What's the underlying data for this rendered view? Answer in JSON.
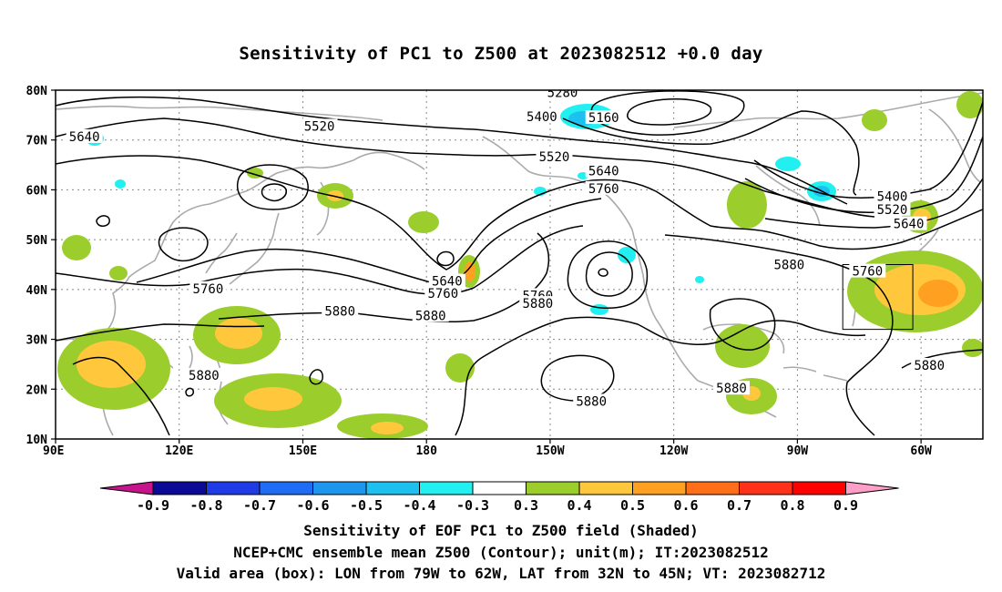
{
  "title": "Sensitivity of PC1 to Z500 at 2023082512 +0.0 day",
  "captions": {
    "line1": "Sensitivity of EOF PC1 to Z500 field (Shaded)",
    "line2": "NCEP+CMC ensemble mean Z500 (Contour); unit(m); IT:2023082512",
    "line3": "Valid area (box): LON from 79W to 62W, LAT from 32N to 45N; VT: 2023082712"
  },
  "map": {
    "lon_range": [
      90,
      315
    ],
    "lat_range": [
      10,
      80
    ],
    "lon_ticks": [
      {
        "lon": 90,
        "label": "90E"
      },
      {
        "lon": 120,
        "label": "120E"
      },
      {
        "lon": 150,
        "label": "150E"
      },
      {
        "lon": 180,
        "label": "180"
      },
      {
        "lon": 210,
        "label": "150W"
      },
      {
        "lon": 240,
        "label": "120W"
      },
      {
        "lon": 270,
        "label": "90W"
      },
      {
        "lon": 300,
        "label": "60W"
      }
    ],
    "lat_ticks": [
      {
        "lat": 10,
        "label": "10N"
      },
      {
        "lat": 20,
        "label": "20N"
      },
      {
        "lat": 30,
        "label": "30N"
      },
      {
        "lat": 40,
        "label": "40N"
      },
      {
        "lat": 50,
        "label": "50N"
      },
      {
        "lat": 60,
        "label": "60N"
      },
      {
        "lat": 70,
        "label": "70N"
      },
      {
        "lat": 80,
        "label": "80N"
      }
    ],
    "valid_box": {
      "lon_min": 281,
      "lon_max": 298,
      "lat_min": 32,
      "lat_max": 45
    },
    "contour_labels": [
      {
        "text": "5280",
        "lon": 213,
        "lat": 79.5
      },
      {
        "text": "5160",
        "lon": 223,
        "lat": 74.5
      },
      {
        "text": "5400",
        "lon": 208,
        "lat": 74.7
      },
      {
        "text": "5520",
        "lon": 154,
        "lat": 72.8
      },
      {
        "text": "5520",
        "lon": 211,
        "lat": 66.7
      },
      {
        "text": "5640",
        "lon": 97,
        "lat": 70.7
      },
      {
        "text": "5640",
        "lon": 223,
        "lat": 63.8
      },
      {
        "text": "5760",
        "lon": 223,
        "lat": 60.3
      },
      {
        "text": "5400",
        "lon": 293,
        "lat": 58.7
      },
      {
        "text": "5520",
        "lon": 293,
        "lat": 56.1
      },
      {
        "text": "5640",
        "lon": 297,
        "lat": 53.2
      },
      {
        "text": "5640",
        "lon": 185,
        "lat": 41.7
      },
      {
        "text": "5760",
        "lon": 184,
        "lat": 39.2
      },
      {
        "text": "5760",
        "lon": 127,
        "lat": 40.2
      },
      {
        "text": "5760",
        "lon": 207,
        "lat": 38.8
      },
      {
        "text": "5760",
        "lon": 287,
        "lat": 43.7
      },
      {
        "text": "5880",
        "lon": 268,
        "lat": 45.0
      },
      {
        "text": "5880",
        "lon": 159,
        "lat": 35.7
      },
      {
        "text": "5880",
        "lon": 181,
        "lat": 34.8
      },
      {
        "text": "5880",
        "lon": 207,
        "lat": 37.2
      },
      {
        "text": "5880",
        "lon": 126,
        "lat": 22.8
      },
      {
        "text": "5880",
        "lon": 220,
        "lat": 17.6
      },
      {
        "text": "5880",
        "lon": 254,
        "lat": 20.2
      },
      {
        "text": "5880",
        "lon": 302,
        "lat": 24.8
      }
    ]
  },
  "colorbar": {
    "labels": [
      "-0.9",
      "-0.8",
      "-0.7",
      "-0.6",
      "-0.5",
      "-0.4",
      "-0.3",
      "0.3",
      "0.4",
      "0.5",
      "0.6",
      "0.7",
      "0.8",
      "0.9"
    ],
    "colors": [
      "#0a0a96",
      "#1f3be6",
      "#1f6cf5",
      "#1e96ee",
      "#1ec0f0",
      "#22f0f0",
      "#ffffff",
      "#9bcd2d",
      "#ffc83c",
      "#ffa021",
      "#ff6e19",
      "#ff3219",
      "#ff0000"
    ],
    "under_color": "#c8148c",
    "over_color": "#ff9ec8"
  }
}
